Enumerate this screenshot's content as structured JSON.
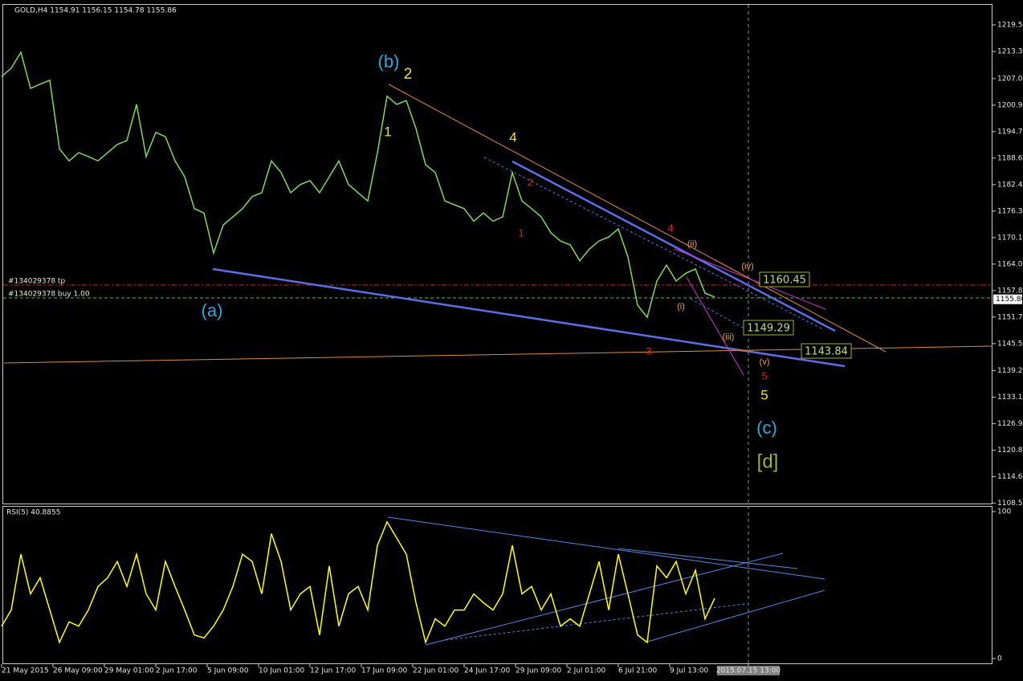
{
  "chart_data": [
    {
      "type": "line",
      "title": "GOLD,H4 1154.91 1156.15 1154.78 1155.86",
      "color": "#7ed957",
      "x": [
        0,
        3,
        6,
        9,
        12,
        15,
        18,
        21,
        24,
        27,
        30,
        33,
        36,
        39,
        42,
        45,
        48,
        51,
        54,
        57,
        60,
        63,
        66,
        69,
        72,
        75,
        78,
        81,
        84,
        87,
        90,
        93,
        96,
        99,
        102,
        105,
        108,
        111,
        114,
        117,
        120,
        123,
        126,
        129,
        132,
        135,
        138,
        141,
        144,
        147,
        150,
        153,
        156,
        159,
        162,
        165,
        168,
        171,
        174,
        177,
        180,
        183,
        186,
        189,
        192,
        195,
        198,
        201,
        204,
        207,
        210,
        213,
        216,
        219,
        222
      ],
      "values": [
        1207.6,
        1209.5,
        1213.2,
        1204.8,
        1205.8,
        1206.7,
        1190.8,
        1188.0,
        1189.9,
        1189.0,
        1188.0,
        1189.9,
        1191.8,
        1192.7,
        1201.1,
        1189.0,
        1194.6,
        1193.6,
        1188.0,
        1184.3,
        1176.9,
        1175.9,
        1166.6,
        1173.1,
        1175.0,
        1176.9,
        1179.7,
        1180.6,
        1188.0,
        1185.3,
        1180.6,
        1182.5,
        1183.4,
        1180.6,
        1184.3,
        1188.0,
        1182.5,
        1180.6,
        1178.7,
        1189.9,
        1203.0,
        1201.1,
        1202.0,
        1195.5,
        1187.1,
        1185.3,
        1178.7,
        1177.8,
        1176.9,
        1174.0,
        1175.9,
        1174.0,
        1175.0,
        1185.3,
        1178.7,
        1176.9,
        1175.0,
        1171.3,
        1169.4,
        1168.5,
        1164.8,
        1167.5,
        1169.4,
        1170.3,
        1172.2,
        1165.7,
        1154.5,
        1151.7,
        1160.1,
        1163.8,
        1160.1,
        1161.9,
        1162.9,
        1157.3,
        1156.4
      ],
      "xlim": [
        -0.5,
        308.5
      ],
      "ylim": [
        1108.27,
        1225.33
      ],
      "yticks": [
        1219.55,
        1213.38,
        1207.08,
        1200.93,
        1194.78,
        1188.63,
        1182.48,
        1176.33,
        1170.18,
        1164.03,
        1157.88,
        1151.73,
        1145.58,
        1139.29,
        1133.13,
        1126.98,
        1120.83,
        1114.68,
        1108.53
      ],
      "last_price": 1155.86,
      "order_labels": [
        "#134029378 tp",
        "#134029378 buy 1.00"
      ],
      "annotations": [
        "(b)",
        "2",
        "1",
        "4",
        "(a)",
        "2",
        "1",
        "4",
        "3",
        "5",
        "(ii)",
        "(i)",
        "(iii)",
        "(iv)",
        "(v)",
        "5",
        "(c)",
        "[d]"
      ],
      "level_labels": [
        "1160.45",
        "1149.29",
        "1143.84"
      ]
    },
    {
      "type": "line",
      "title": "RSI(5) 40.8855",
      "color": "#ffff00",
      "x": [
        0,
        3,
        6,
        9,
        12,
        15,
        18,
        21,
        24,
        27,
        30,
        33,
        36,
        39,
        42,
        45,
        48,
        51,
        54,
        57,
        60,
        63,
        66,
        69,
        72,
        75,
        78,
        81,
        84,
        87,
        90,
        93,
        96,
        99,
        102,
        105,
        108,
        111,
        114,
        117,
        120,
        123,
        126,
        129,
        132,
        135,
        138,
        141,
        144,
        147,
        150,
        153,
        156,
        159,
        162,
        165,
        168,
        171,
        174,
        177,
        180,
        183,
        186,
        189,
        192,
        195,
        198,
        201,
        204,
        207,
        210,
        213,
        216,
        219,
        222
      ],
      "values": [
        22,
        33,
        71,
        44,
        55,
        33,
        11,
        25,
        22,
        33,
        49,
        55,
        66,
        49,
        71,
        44,
        33,
        66,
        49,
        33,
        16,
        14,
        22,
        33,
        49,
        71,
        66,
        44,
        85,
        66,
        33,
        44,
        49,
        16,
        63,
        22,
        44,
        49,
        33,
        77,
        93,
        82,
        71,
        38,
        11,
        27,
        22,
        33,
        33,
        44,
        38,
        33,
        44,
        77,
        44,
        49,
        33,
        44,
        22,
        27,
        22,
        44,
        66,
        33,
        71,
        44,
        16,
        11,
        63,
        55,
        66,
        44,
        60,
        27,
        41
      ],
      "xlim": [
        -0.5,
        308.5
      ],
      "ylim": [
        0,
        100
      ],
      "yticks": [
        100,
        0
      ],
      "xticks": [
        {
          "value": 0,
          "label": "21 May 2015"
        },
        {
          "value": 16,
          "label": "26 May 09:00"
        },
        {
          "value": 32,
          "label": "29 May 01:00"
        },
        {
          "value": 48,
          "label": "2 Jun 17:00"
        },
        {
          "value": 64,
          "label": "5 Jun 09:00"
        },
        {
          "value": 80,
          "label": "10 Jun 01:00"
        },
        {
          "value": 96,
          "label": "12 Jun 17:00"
        },
        {
          "value": 112,
          "label": "17 Jun 09:00"
        },
        {
          "value": 128,
          "label": "22 Jun 01:00"
        },
        {
          "value": 144,
          "label": "24 Jun 17:00"
        },
        {
          "value": 160,
          "label": "29 Jun 09:00"
        },
        {
          "value": 176,
          "label": "2 Jul 01:00"
        },
        {
          "value": 192,
          "label": "6 Jul 21:00"
        },
        {
          "value": 208,
          "label": "9 Jul 13:00"
        },
        {
          "value": 232.5,
          "label": "2015.07.15 13:00"
        }
      ]
    }
  ]
}
